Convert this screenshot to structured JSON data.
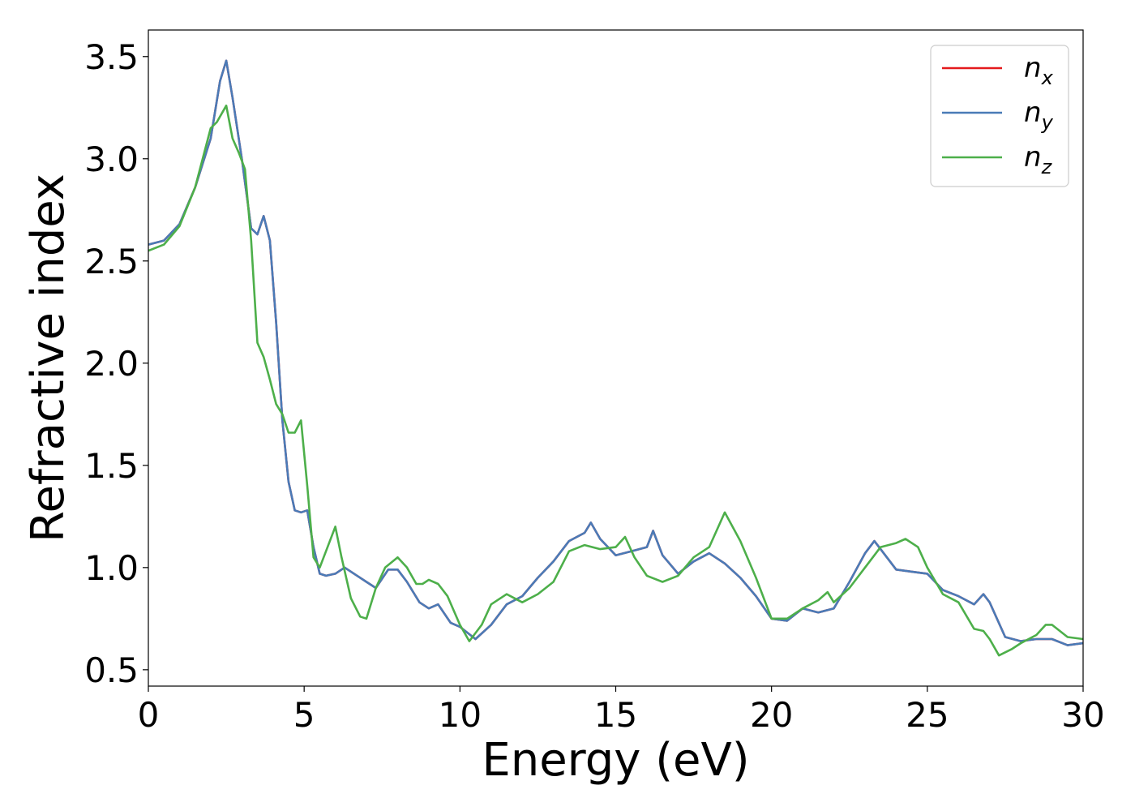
{
  "chart_data": {
    "type": "line",
    "xlabel": "Energy (eV)",
    "ylabel": "Refractive index",
    "xlim": [
      0,
      30
    ],
    "ylim": [
      0.42,
      3.63
    ],
    "xticks": [
      0,
      5,
      10,
      15,
      20,
      25,
      30
    ],
    "yticks": [
      0.5,
      1.0,
      1.5,
      2.0,
      2.5,
      3.0,
      3.5
    ],
    "xtick_labels": [
      "0",
      "5",
      "10",
      "15",
      "20",
      "25",
      "30"
    ],
    "ytick_labels": [
      "0.5",
      "1.0",
      "1.5",
      "2.0",
      "2.5",
      "3.0",
      "3.5"
    ],
    "grid": false,
    "legend_position": "top-right",
    "series": [
      {
        "name": "n_x",
        "legend_base": "n",
        "legend_sub": "x",
        "color": "#e41a1c",
        "x": [
          0,
          0.5,
          1.0,
          1.5,
          2.0,
          2.3,
          2.5,
          2.7,
          3.0,
          3.3,
          3.5,
          3.7,
          3.9,
          4.1,
          4.3,
          4.5,
          4.7,
          4.9,
          5.1,
          5.3,
          5.5,
          5.7,
          6.0,
          6.3,
          6.7,
          7.0,
          7.3,
          7.7,
          8.0,
          8.3,
          8.7,
          9.0,
          9.3,
          9.7,
          10.0,
          10.5,
          11.0,
          11.5,
          12.0,
          12.5,
          13.0,
          13.5,
          14.0,
          14.2,
          14.5,
          15.0,
          15.5,
          16.0,
          16.2,
          16.5,
          17.0,
          17.5,
          18.0,
          18.5,
          19.0,
          19.5,
          20.0,
          20.5,
          21.0,
          21.5,
          22.0,
          22.5,
          23.0,
          23.3,
          23.7,
          24.0,
          24.5,
          25.0,
          25.5,
          26.0,
          26.5,
          26.8,
          27.0,
          27.5,
          28.0,
          28.5,
          29.0,
          29.5,
          30.0
        ],
        "y": [
          2.58,
          2.6,
          2.68,
          2.86,
          3.1,
          3.38,
          3.48,
          3.3,
          3.0,
          2.66,
          2.63,
          2.72,
          2.6,
          2.2,
          1.72,
          1.42,
          1.28,
          1.27,
          1.28,
          1.1,
          0.97,
          0.96,
          0.97,
          1.0,
          0.96,
          0.93,
          0.9,
          0.99,
          0.99,
          0.93,
          0.83,
          0.8,
          0.82,
          0.73,
          0.71,
          0.65,
          0.72,
          0.82,
          0.86,
          0.95,
          1.03,
          1.13,
          1.17,
          1.22,
          1.14,
          1.06,
          1.08,
          1.1,
          1.18,
          1.06,
          0.97,
          1.03,
          1.07,
          1.02,
          0.95,
          0.86,
          0.75,
          0.74,
          0.8,
          0.78,
          0.8,
          0.93,
          1.07,
          1.13,
          1.05,
          0.99,
          0.98,
          0.97,
          0.89,
          0.86,
          0.82,
          0.87,
          0.83,
          0.66,
          0.64,
          0.65,
          0.65,
          0.62,
          0.63
        ]
      },
      {
        "name": "n_y",
        "legend_base": "n",
        "legend_sub": "y",
        "color": "#4a7bb7",
        "x": [
          0,
          0.5,
          1.0,
          1.5,
          2.0,
          2.3,
          2.5,
          2.7,
          3.0,
          3.3,
          3.5,
          3.7,
          3.9,
          4.1,
          4.3,
          4.5,
          4.7,
          4.9,
          5.1,
          5.3,
          5.5,
          5.7,
          6.0,
          6.3,
          6.7,
          7.0,
          7.3,
          7.7,
          8.0,
          8.3,
          8.7,
          9.0,
          9.3,
          9.7,
          10.0,
          10.5,
          11.0,
          11.5,
          12.0,
          12.5,
          13.0,
          13.5,
          14.0,
          14.2,
          14.5,
          15.0,
          15.5,
          16.0,
          16.2,
          16.5,
          17.0,
          17.5,
          18.0,
          18.5,
          19.0,
          19.5,
          20.0,
          20.5,
          21.0,
          21.5,
          22.0,
          22.5,
          23.0,
          23.3,
          23.7,
          24.0,
          24.5,
          25.0,
          25.5,
          26.0,
          26.5,
          26.8,
          27.0,
          27.5,
          28.0,
          28.5,
          29.0,
          29.5,
          30.0
        ],
        "y": [
          2.58,
          2.6,
          2.68,
          2.86,
          3.1,
          3.38,
          3.48,
          3.3,
          3.0,
          2.66,
          2.63,
          2.72,
          2.6,
          2.2,
          1.72,
          1.42,
          1.28,
          1.27,
          1.28,
          1.1,
          0.97,
          0.96,
          0.97,
          1.0,
          0.96,
          0.93,
          0.9,
          0.99,
          0.99,
          0.93,
          0.83,
          0.8,
          0.82,
          0.73,
          0.71,
          0.65,
          0.72,
          0.82,
          0.86,
          0.95,
          1.03,
          1.13,
          1.17,
          1.22,
          1.14,
          1.06,
          1.08,
          1.1,
          1.18,
          1.06,
          0.97,
          1.03,
          1.07,
          1.02,
          0.95,
          0.86,
          0.75,
          0.74,
          0.8,
          0.78,
          0.8,
          0.93,
          1.07,
          1.13,
          1.05,
          0.99,
          0.98,
          0.97,
          0.89,
          0.86,
          0.82,
          0.87,
          0.83,
          0.66,
          0.64,
          0.65,
          0.65,
          0.62,
          0.63
        ]
      },
      {
        "name": "n_z",
        "legend_base": "n",
        "legend_sub": "z",
        "color": "#4daf4a",
        "x": [
          0,
          0.5,
          1.0,
          1.5,
          2.0,
          2.2,
          2.5,
          2.7,
          2.9,
          3.1,
          3.3,
          3.5,
          3.7,
          3.9,
          4.1,
          4.3,
          4.5,
          4.7,
          4.9,
          5.1,
          5.3,
          5.5,
          5.7,
          6.0,
          6.2,
          6.5,
          6.8,
          7.0,
          7.3,
          7.6,
          8.0,
          8.3,
          8.6,
          8.8,
          9.0,
          9.3,
          9.6,
          10.0,
          10.3,
          10.7,
          11.0,
          11.5,
          12.0,
          12.5,
          13.0,
          13.5,
          14.0,
          14.5,
          15.0,
          15.3,
          15.6,
          16.0,
          16.5,
          17.0,
          17.5,
          18.0,
          18.5,
          19.0,
          19.5,
          20.0,
          20.5,
          21.0,
          21.5,
          21.8,
          22.0,
          22.5,
          23.0,
          23.5,
          24.0,
          24.3,
          24.7,
          25.0,
          25.5,
          26.0,
          26.5,
          26.8,
          27.0,
          27.3,
          27.7,
          28.0,
          28.5,
          28.8,
          29.0,
          29.5,
          30.0
        ],
        "y": [
          2.55,
          2.58,
          2.67,
          2.86,
          3.15,
          3.18,
          3.26,
          3.1,
          3.03,
          2.95,
          2.6,
          2.1,
          2.03,
          1.92,
          1.8,
          1.75,
          1.66,
          1.66,
          1.72,
          1.4,
          1.05,
          1.0,
          1.08,
          1.2,
          1.05,
          0.85,
          0.76,
          0.75,
          0.9,
          1.0,
          1.05,
          1.0,
          0.92,
          0.92,
          0.94,
          0.92,
          0.86,
          0.72,
          0.64,
          0.72,
          0.82,
          0.87,
          0.83,
          0.87,
          0.93,
          1.08,
          1.11,
          1.09,
          1.1,
          1.15,
          1.05,
          0.96,
          0.93,
          0.96,
          1.05,
          1.1,
          1.27,
          1.13,
          0.95,
          0.75,
          0.75,
          0.8,
          0.84,
          0.88,
          0.83,
          0.9,
          1.0,
          1.1,
          1.12,
          1.14,
          1.1,
          1.0,
          0.87,
          0.83,
          0.7,
          0.69,
          0.65,
          0.57,
          0.6,
          0.63,
          0.67,
          0.72,
          0.72,
          0.66,
          0.65
        ]
      }
    ]
  }
}
